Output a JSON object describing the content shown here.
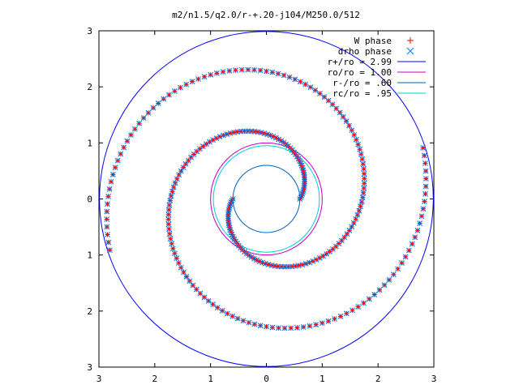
{
  "chart_data": {
    "type": "scatter",
    "title": "m2/n1.5/q2.0/r-+.20-j104/M250.0/512",
    "xlabel": "",
    "ylabel": "",
    "xlim": [
      -3,
      3
    ],
    "ylim": [
      -3,
      3
    ],
    "x_tick_labels": [
      "3",
      "2",
      "1",
      "0",
      "1",
      "2",
      "3"
    ],
    "y_tick_labels": [
      "3",
      "2",
      "1",
      "0",
      "1",
      "2",
      "3"
    ],
    "grid": false,
    "legend_position": "top-right",
    "series": [
      {
        "name": "W phase",
        "kind": "points",
        "marker": "plus",
        "color": "#ff0000",
        "description_arms": "two-armed spiral, points traced from inner radius ~0.6 to outer radius ~2.99"
      },
      {
        "name": "drho phase",
        "kind": "points",
        "marker": "cross",
        "color": "#0080ff"
      },
      {
        "name": "r+/ro = 2.99",
        "kind": "circle",
        "radius": 2.99,
        "color": "#0000ff"
      },
      {
        "name": "ro/ro = 1.00",
        "kind": "circle",
        "radius": 1.0,
        "color": "#c000c0"
      },
      {
        "name": "r-/ro = .60",
        "kind": "circle",
        "radius": 0.6,
        "color": "#0060c0"
      },
      {
        "name": "rc/ro = .95",
        "kind": "circle",
        "radius": 0.95,
        "color": "#00d0d0"
      }
    ],
    "spiral_arms": [
      {
        "start_angle_deg": 0,
        "r_min": 0.6,
        "r_max": 2.95,
        "turns": 1.05
      },
      {
        "start_angle_deg": 180,
        "r_min": 0.6,
        "r_max": 2.95,
        "turns": 1.05
      }
    ]
  }
}
